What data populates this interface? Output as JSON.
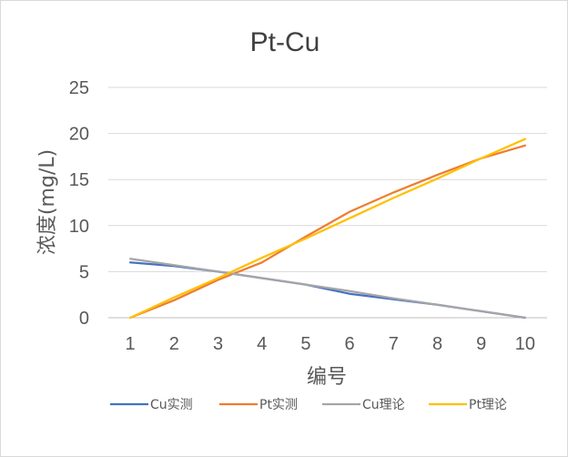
{
  "chart_data": {
    "type": "line",
    "title": "Pt-Cu",
    "xlabel": "编号",
    "ylabel": "浓度(mg/L)",
    "x": [
      1,
      2,
      3,
      4,
      5,
      6,
      7,
      8,
      9,
      10
    ],
    "ylim": [
      0,
      25
    ],
    "yticks": [
      0,
      5,
      10,
      15,
      20,
      25
    ],
    "grid": "horizontal",
    "legend_position": "bottom",
    "series": [
      {
        "name": "Cu实测",
        "color": "#4472C4",
        "values": [
          6.0,
          5.6,
          5.0,
          4.3,
          3.6,
          2.6,
          2.0,
          1.4,
          0.7,
          0.0
        ]
      },
      {
        "name": "Pt实测",
        "color": "#ED7D31",
        "values": [
          0.0,
          1.9,
          4.1,
          6.0,
          8.8,
          11.5,
          13.6,
          15.5,
          17.3,
          18.7
        ]
      },
      {
        "name": "Cu理论",
        "color": "#A5A5A5",
        "values": [
          6.4,
          5.7,
          5.0,
          4.3,
          3.6,
          2.9,
          2.1,
          1.4,
          0.7,
          0.0
        ]
      },
      {
        "name": "Pt理论",
        "color": "#FFC000",
        "values": [
          0.0,
          2.2,
          4.3,
          6.5,
          8.6,
          10.8,
          13.0,
          15.1,
          17.3,
          19.4
        ]
      }
    ]
  }
}
